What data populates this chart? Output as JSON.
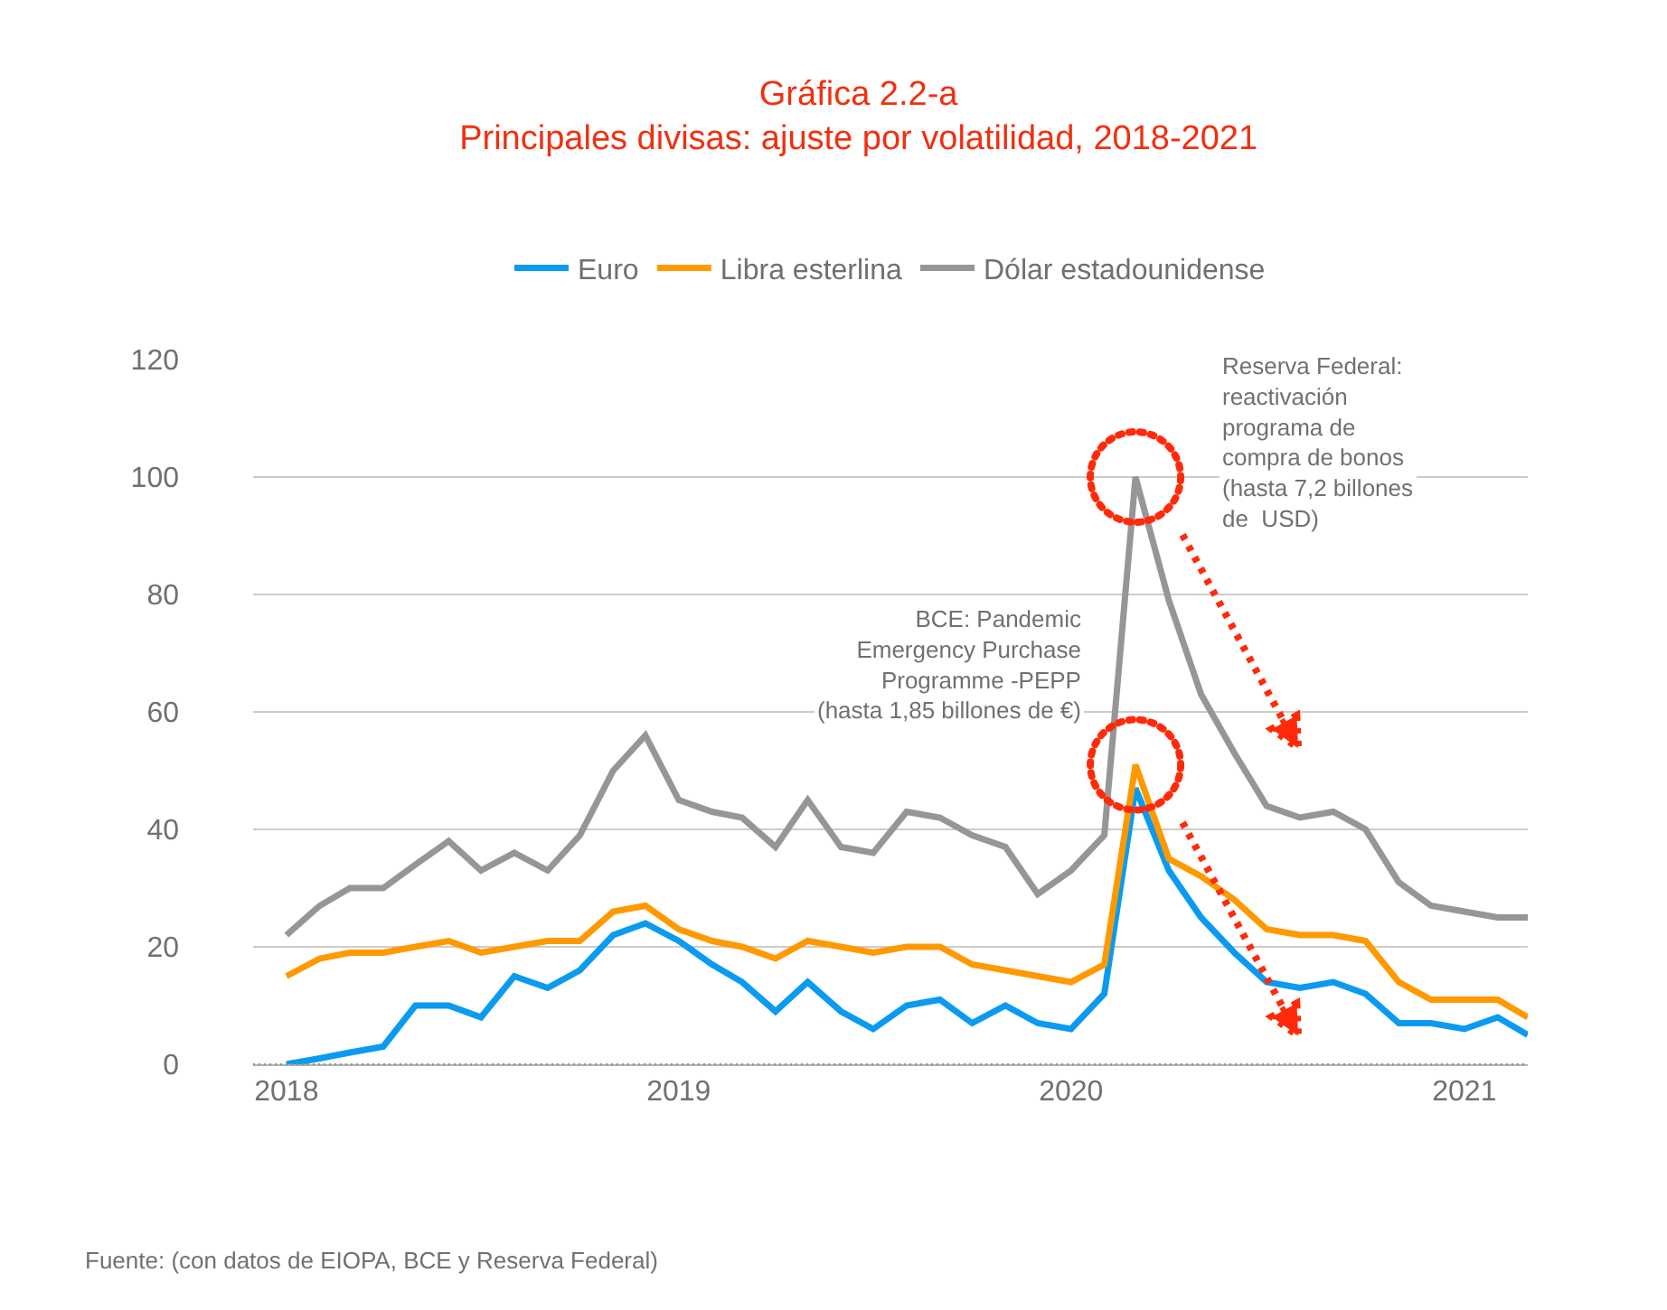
{
  "chart_data": {
    "type": "line",
    "title": "Gráfica 2.2-a\nPrincipales divisas: ajuste por volatilidad, 2018-2021",
    "x": [
      "2018-01",
      "2018-02",
      "2018-03",
      "2018-04",
      "2018-05",
      "2018-06",
      "2018-07",
      "2018-08",
      "2018-09",
      "2018-10",
      "2018-11",
      "2018-12",
      "2019-01",
      "2019-02",
      "2019-03",
      "2019-04",
      "2019-05",
      "2019-06",
      "2019-07",
      "2019-08",
      "2019-09",
      "2019-10",
      "2019-11",
      "2019-12",
      "2020-01",
      "2020-02",
      "2020-03",
      "2020-04",
      "2020-05",
      "2020-06",
      "2020-07",
      "2020-08",
      "2020-09",
      "2020-10",
      "2020-11",
      "2020-12",
      "2021-01",
      "2021-02",
      "2021-03"
    ],
    "series": [
      {
        "name": "Euro",
        "color": "#0a9bf0",
        "values": [
          0,
          1,
          2,
          3,
          10,
          10,
          8,
          15,
          13,
          16,
          22,
          24,
          21,
          17,
          14,
          9,
          14,
          9,
          6,
          10,
          11,
          7,
          10,
          7,
          6,
          12,
          47,
          33,
          25,
          19,
          14,
          13,
          14,
          12,
          7,
          7,
          6,
          8,
          5
        ]
      },
      {
        "name": "Libra esterlina",
        "color": "#ff9900",
        "values": [
          15,
          18,
          19,
          19,
          20,
          21,
          19,
          20,
          21,
          21,
          26,
          27,
          23,
          21,
          20,
          18,
          21,
          20,
          19,
          20,
          20,
          17,
          16,
          15,
          14,
          17,
          51,
          35,
          32,
          28,
          23,
          22,
          22,
          21,
          14,
          11,
          11,
          11,
          8
        ]
      },
      {
        "name": "Dólar estadounidense",
        "color": "#969696",
        "values": [
          22,
          27,
          30,
          30,
          34,
          38,
          33,
          36,
          33,
          39,
          50,
          56,
          45,
          43,
          42,
          37,
          45,
          37,
          36,
          43,
          42,
          39,
          37,
          29,
          33,
          39,
          100,
          79,
          63,
          53,
          44,
          42,
          43,
          40,
          31,
          27,
          26,
          25,
          25
        ]
      }
    ],
    "xlim": [
      "2017-12",
      "2021-03"
    ],
    "xticks": [
      {
        "value": "2018-01",
        "label": "2018"
      },
      {
        "value": "2019-01",
        "label": "2019"
      },
      {
        "value": "2020-01",
        "label": "2020"
      },
      {
        "value": "2021-01",
        "label": "2021"
      }
    ],
    "ylim": [
      0,
      120
    ],
    "yticks": [
      0,
      20,
      40,
      60,
      80,
      100,
      120
    ],
    "grid": "y",
    "legend": "top",
    "marker": "none",
    "line_style": "solid",
    "annotations": [
      "Reserva Federal:\nreactivación\nprograma de\ncompra de bonos\n(hasta 7,2 billones\nde  USD)",
      "BCE: Pandemic\nEmergency Purchase\nProgramme -PEPP\n(hasta 1,85 billones de €)",
      "Fuente: (con datos de EIOPA, BCE y Reserva Federal)"
    ]
  }
}
